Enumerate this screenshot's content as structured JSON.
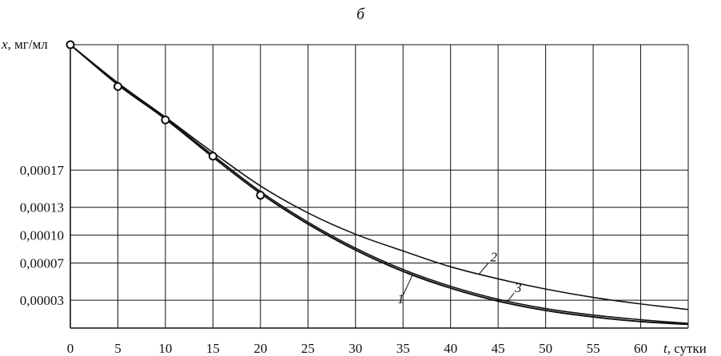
{
  "chart_data": {
    "type": "line",
    "title": "б",
    "xlabel_var": "t",
    "xlabel_unit": ", сутки",
    "ylabel_var": "x",
    "ylabel_unit": ", мг/мл",
    "xlim": [
      0,
      65
    ],
    "ylim": [
      0,
      0.000305
    ],
    "grid": true,
    "x_ticks": [
      0,
      5,
      10,
      15,
      20,
      25,
      30,
      35,
      40,
      45,
      50,
      55,
      60
    ],
    "x_tick_labels": [
      "0",
      "5",
      "10",
      "15",
      "20",
      "25",
      "30",
      "35",
      "40",
      "45",
      "50",
      "55",
      "60"
    ],
    "y_ticks": [
      3e-05,
      7e-05,
      0.0001,
      0.00013,
      0.00017
    ],
    "y_tick_labels": [
      "0,00003",
      "0,00007",
      "0,00010",
      "0,00013",
      "0,00017"
    ],
    "series": [
      {
        "name": "1",
        "x": [
          0,
          5,
          10,
          15,
          20,
          25,
          30,
          35,
          40,
          45,
          50,
          55,
          60,
          65
        ],
        "values": [
          0.000305,
          0.000262,
          0.000225,
          0.000184,
          0.000145,
          0.000112,
          8.4e-05,
          6.1e-05,
          4.3e-05,
          2.9e-05,
          1.9e-05,
          1.2e-05,
          7e-06,
          4e-06
        ]
      },
      {
        "name": "2",
        "x": [
          0,
          5,
          10,
          15,
          20,
          25,
          30,
          35,
          40,
          45,
          50,
          55,
          60,
          65
        ],
        "values": [
          0.000305,
          0.000264,
          0.000227,
          0.000189,
          0.000153,
          0.000124,
          0.000101,
          8.3e-05,
          6.6e-05,
          5.3e-05,
          4.2e-05,
          3.3e-05,
          2.6e-05,
          2e-05
        ]
      },
      {
        "name": "3",
        "x": [
          0,
          5,
          10,
          15,
          20,
          25,
          30,
          35,
          40,
          45,
          50,
          55,
          60,
          65
        ],
        "values": [
          0.000305,
          0.000263,
          0.000226,
          0.000186,
          0.000147,
          0.000114,
          8.6e-05,
          6.3e-05,
          4.5e-05,
          3.1e-05,
          2.1e-05,
          1.4e-05,
          9e-06,
          5e-06
        ]
      }
    ],
    "observed_points": {
      "x": [
        0,
        5,
        10,
        15,
        20
      ],
      "values": [
        0.000305,
        0.00026,
        0.000224,
        0.000185,
        0.000143
      ]
    },
    "curve_labels": [
      {
        "text": "1",
        "series": "1",
        "at_x": 36
      },
      {
        "text": "2",
        "series": "2",
        "at_x": 43
      },
      {
        "text": "3",
        "series": "3",
        "at_x": 46
      }
    ]
  }
}
